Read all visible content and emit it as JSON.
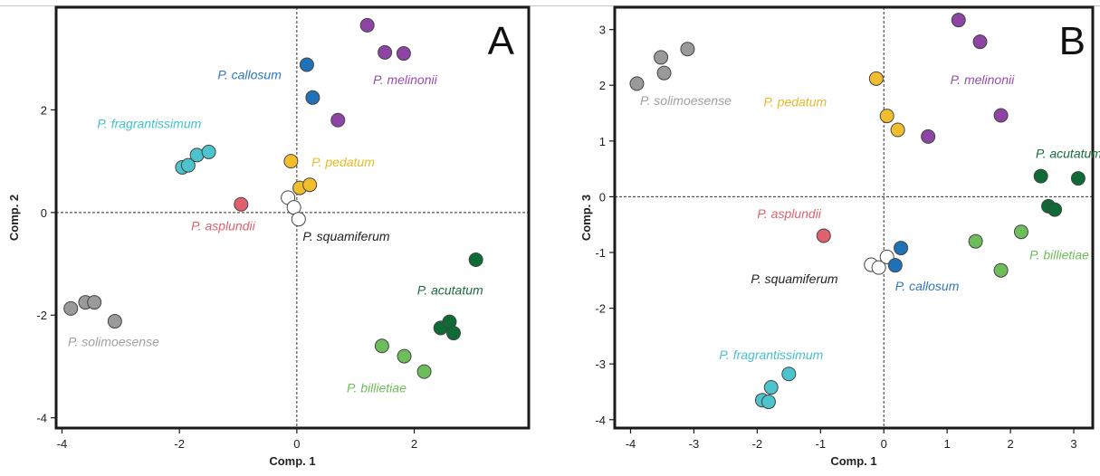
{
  "chart_data": [
    {
      "type": "scatter",
      "panel": "A",
      "xlabel": "Comp. 1",
      "ylabel": "Comp. 2",
      "xlim": [
        -4.1,
        3.95
      ],
      "ylim": [
        -4.2,
        4.0
      ],
      "xticks": [
        -4,
        -2,
        0,
        2
      ],
      "yticks": [
        -4,
        -2,
        0,
        2
      ],
      "zero_lines": true,
      "series": [
        {
          "name": "P. solimoesense",
          "color": "#9a9a9a",
          "label_color": "#a0a0a0",
          "label_pos": {
            "x": -3.9,
            "y": -2.6
          },
          "points": [
            [
              -3.85,
              -1.87
            ],
            [
              -3.6,
              -1.75
            ],
            [
              -3.45,
              -1.75
            ],
            [
              -3.1,
              -2.12
            ]
          ]
        },
        {
          "name": "P. callosum",
          "color": "#1f72b8",
          "label_color": "#2f78c0",
          "label_pos": {
            "x": -1.35,
            "y": 2.6
          },
          "points": [
            [
              0.17,
              2.88
            ],
            [
              0.27,
              2.24
            ]
          ]
        },
        {
          "name": "P. melinonii",
          "color": "#8e44a4",
          "label_color": "#9a4bb0",
          "label_pos": {
            "x": 1.3,
            "y": 2.5
          },
          "points": [
            [
              1.2,
              3.65
            ],
            [
              1.5,
              3.12
            ],
            [
              1.82,
              3.1
            ],
            [
              0.7,
              1.8
            ]
          ]
        },
        {
          "name": "P. fragrantissimum",
          "color": "#4cc3cd",
          "label_color": "#45c0cc",
          "label_pos": {
            "x": -3.4,
            "y": 1.65
          },
          "points": [
            [
              -1.95,
              0.88
            ],
            [
              -1.85,
              0.92
            ],
            [
              -1.7,
              1.12
            ],
            [
              -1.5,
              1.18
            ]
          ]
        },
        {
          "name": "P. pedatum",
          "color": "#f2be2e",
          "label_color": "#e8b92a",
          "label_pos": {
            "x": 0.25,
            "y": 0.9
          },
          "points": [
            [
              -0.1,
              1.0
            ],
            [
              0.05,
              0.48
            ],
            [
              0.22,
              0.54
            ]
          ]
        },
        {
          "name": "P. asplundii",
          "color": "#e0606e",
          "label_color": "#e0606e",
          "label_pos": {
            "x": -1.8,
            "y": -0.35
          },
          "points": [
            [
              -0.95,
              0.16
            ]
          ]
        },
        {
          "name": "P. squamiferum",
          "color": "#ffffff",
          "label_color": "#222222",
          "label_pos": {
            "x": 0.1,
            "y": -0.55
          },
          "points": [
            [
              -0.15,
              0.29
            ],
            [
              -0.05,
              0.1
            ],
            [
              0.03,
              -0.13
            ]
          ]
        },
        {
          "name": "P. acutatum",
          "color": "#0e6b35",
          "label_color": "#1a6d3a",
          "label_pos": {
            "x": 2.05,
            "y": -1.6
          },
          "points": [
            [
              3.05,
              -0.92
            ],
            [
              2.45,
              -2.25
            ],
            [
              2.6,
              -2.13
            ],
            [
              2.67,
              -2.35
            ]
          ]
        },
        {
          "name": "P. billietiae",
          "color": "#6dbd5b",
          "label_color": "#6dbd5b",
          "label_pos": {
            "x": 0.85,
            "y": -3.5
          },
          "points": [
            [
              1.45,
              -2.6
            ],
            [
              1.83,
              -2.8
            ],
            [
              2.17,
              -3.1
            ]
          ]
        }
      ]
    },
    {
      "type": "scatter",
      "panel": "B",
      "xlabel": "Comp. 1",
      "ylabel": "Comp. 3",
      "xlim": [
        -4.25,
        3.3
      ],
      "ylim": [
        -4.15,
        3.4
      ],
      "xticks": [
        -4,
        -3,
        -2,
        -1,
        0,
        1,
        2,
        3
      ],
      "yticks": [
        -4,
        -3,
        -2,
        -1,
        0,
        1,
        2,
        3
      ],
      "zero_lines": true,
      "series": [
        {
          "name": "P. solimoesense",
          "color": "#9a9a9a",
          "label_color": "#a0a0a0",
          "label_pos": {
            "x": -3.85,
            "y": 1.65
          },
          "points": [
            [
              -3.9,
              2.03
            ],
            [
              -3.52,
              2.5
            ],
            [
              -3.47,
              2.22
            ],
            [
              -3.1,
              2.65
            ]
          ]
        },
        {
          "name": "P. pedatum",
          "color": "#f2be2e",
          "label_color": "#e8b92a",
          "label_pos": {
            "x": -1.9,
            "y": 1.62
          },
          "points": [
            [
              -0.12,
              2.12
            ],
            [
              0.05,
              1.45
            ],
            [
              0.22,
              1.2
            ]
          ]
        },
        {
          "name": "P. melinonii",
          "color": "#8e44a4",
          "label_color": "#9a4bb0",
          "label_pos": {
            "x": 1.05,
            "y": 2.02
          },
          "points": [
            [
              1.18,
              3.17
            ],
            [
              1.52,
              2.78
            ],
            [
              1.85,
              1.46
            ],
            [
              0.7,
              1.08
            ]
          ]
        },
        {
          "name": "P. acutatum",
          "color": "#0e6b35",
          "label_color": "#1a6d3a",
          "label_pos": {
            "x": 2.4,
            "y": 0.7
          },
          "points": [
            [
              2.48,
              0.37
            ],
            [
              3.07,
              0.33
            ],
            [
              2.6,
              -0.17
            ],
            [
              2.7,
              -0.23
            ]
          ]
        },
        {
          "name": "P. asplundii",
          "color": "#e0606e",
          "label_color": "#e0606e",
          "label_pos": {
            "x": -2.0,
            "y": -0.38
          },
          "points": [
            [
              -0.95,
              -0.7
            ]
          ]
        },
        {
          "name": "P. billietiae",
          "color": "#6dbd5b",
          "label_color": "#6dbd5b",
          "label_pos": {
            "x": 2.3,
            "y": -1.12
          },
          "points": [
            [
              1.45,
              -0.8
            ],
            [
              2.17,
              -0.63
            ],
            [
              1.85,
              -1.32
            ]
          ]
        },
        {
          "name": "P. squamiferum",
          "color": "#ffffff",
          "label_color": "#222222",
          "label_pos": {
            "x": -2.1,
            "y": -1.55
          },
          "points": [
            [
              -0.2,
              -1.22
            ],
            [
              -0.08,
              -1.27
            ],
            [
              0.05,
              -1.08
            ]
          ]
        },
        {
          "name": "P. callosum",
          "color": "#1f72b8",
          "label_color": "#2f78c0",
          "label_pos": {
            "x": 0.18,
            "y": -1.68
          },
          "points": [
            [
              0.27,
              -0.92
            ],
            [
              0.18,
              -1.23
            ]
          ]
        },
        {
          "name": "P. fragrantissimum",
          "color": "#4cc3cd",
          "label_color": "#45c0cc",
          "label_pos": {
            "x": -2.6,
            "y": -2.92
          },
          "points": [
            [
              -1.5,
              -3.18
            ],
            [
              -1.78,
              -3.42
            ],
            [
              -1.92,
              -3.65
            ],
            [
              -1.82,
              -3.68
            ]
          ]
        }
      ]
    }
  ]
}
